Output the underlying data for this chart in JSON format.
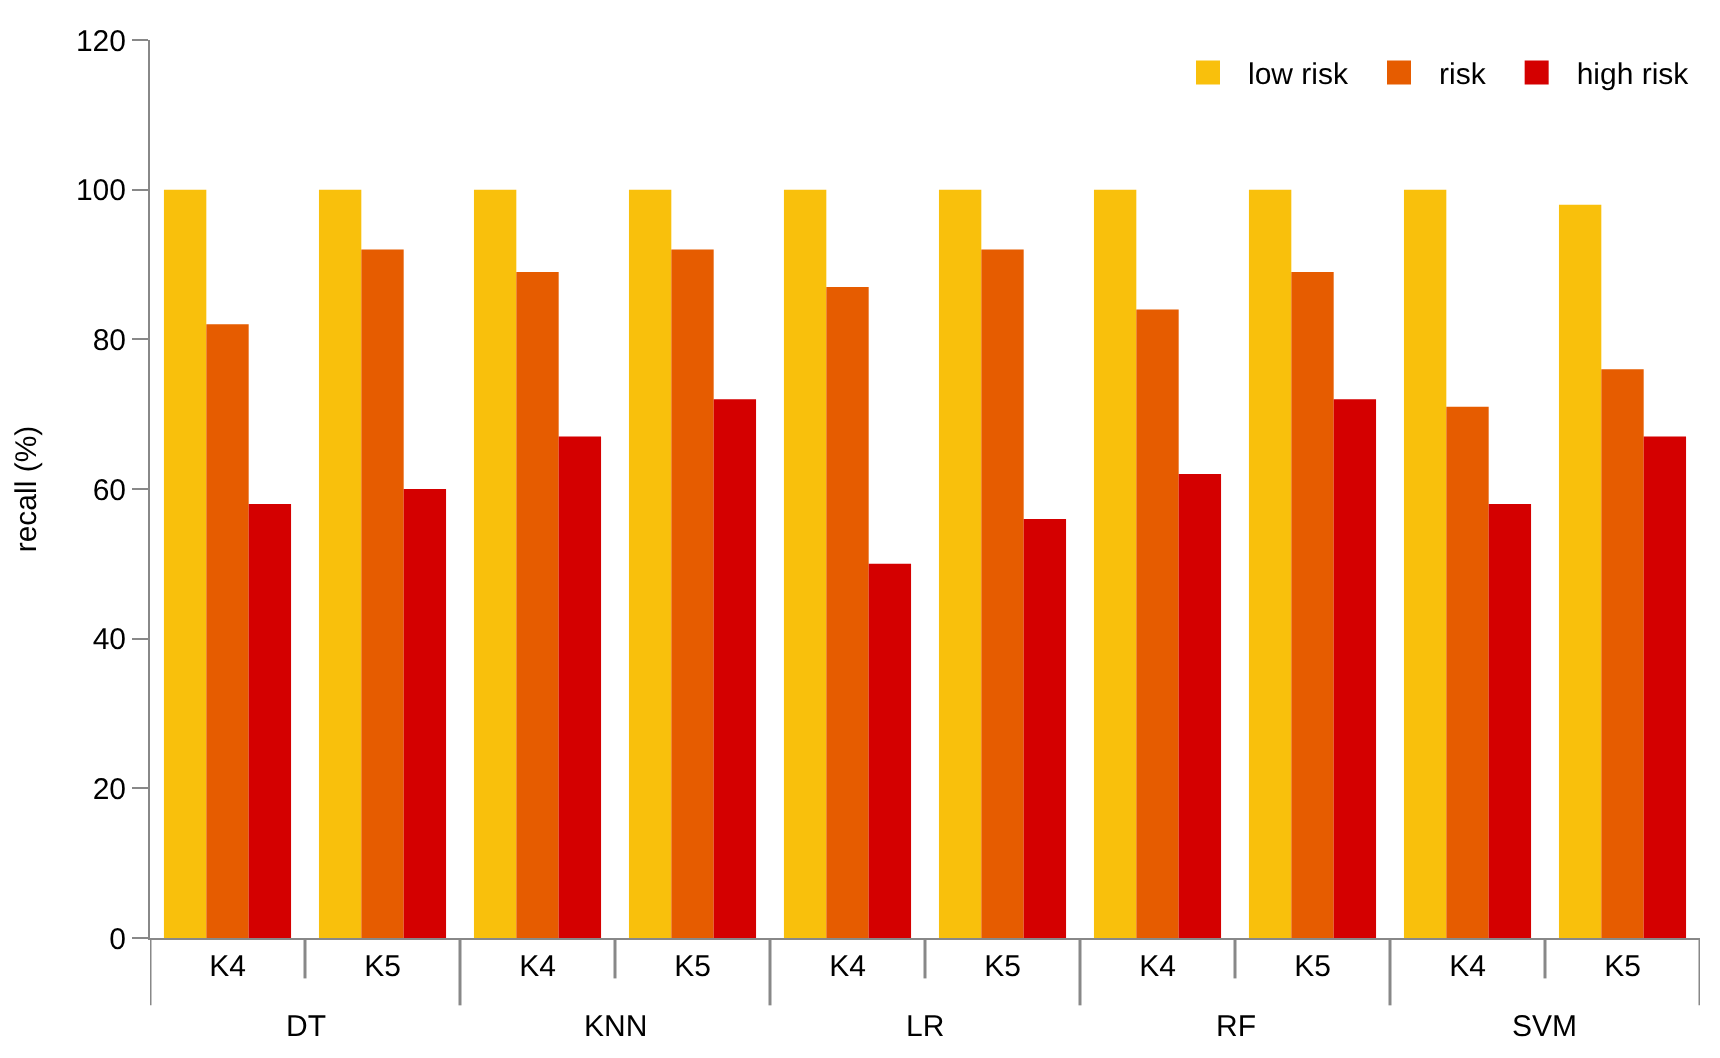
{
  "chart_data": {
    "type": "bar",
    "ylabel": "recall (%)",
    "categories": [
      "K4",
      "K5",
      "K4",
      "K5",
      "K4",
      "K5",
      "K4",
      "K5",
      "K4",
      "K5"
    ],
    "series": [
      {
        "name": "low risk",
        "color": "#f9c00c",
        "values": [
          100,
          100,
          100,
          100,
          100,
          100,
          100,
          100,
          100,
          98
        ]
      },
      {
        "name": "risk",
        "color": "#e65c00",
        "values": [
          82,
          92,
          89,
          92,
          87,
          92,
          84,
          89,
          71,
          76
        ]
      },
      {
        "name": "high risk",
        "color": "#d40000",
        "values": [
          58,
          60,
          67,
          72,
          50,
          56,
          62,
          72,
          58,
          67
        ]
      }
    ],
    "annotations": [
      "DT",
      "KNN",
      "LR",
      "RF",
      "SVM"
    ],
    "ylim": [
      0,
      120
    ],
    "yticks": [
      0,
      20,
      40,
      60,
      80,
      100,
      120
    ],
    "legend": "top right"
  }
}
